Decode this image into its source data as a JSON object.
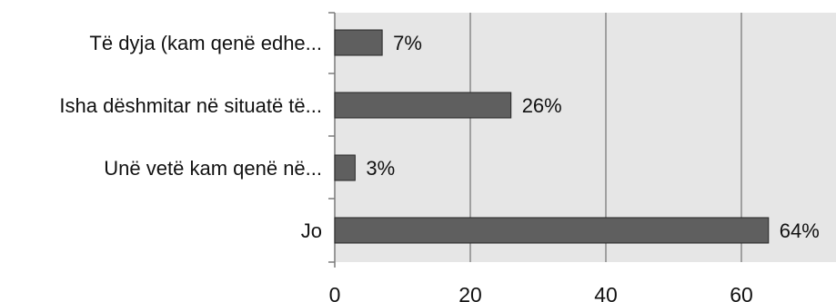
{
  "chart_data": {
    "type": "bar",
    "orientation": "horizontal",
    "title": "",
    "xlabel": "",
    "ylabel": "",
    "categories": [
      "Të dyja (kam qenë edhe...",
      "Isha dëshmitar në situatë të...",
      "Unë vetë kam qenë në...",
      "Jo"
    ],
    "values": [
      7,
      26,
      3,
      64
    ],
    "data_labels": [
      "7%",
      "26%",
      "3%",
      "64%"
    ],
    "xlim": [
      0,
      72
    ],
    "x_ticks": [
      0,
      20,
      40,
      60
    ],
    "x_tick_labels": [
      "0",
      "20",
      "40",
      "60"
    ],
    "grid": "vertical",
    "legend": "none"
  },
  "colors": {
    "plot_background": "#e6e6e6",
    "bar_fill": "#5f5f5f",
    "bar_stroke": "#262626",
    "gridline": "#888888",
    "axis": "#7a7a7a",
    "text": "#111111"
  }
}
